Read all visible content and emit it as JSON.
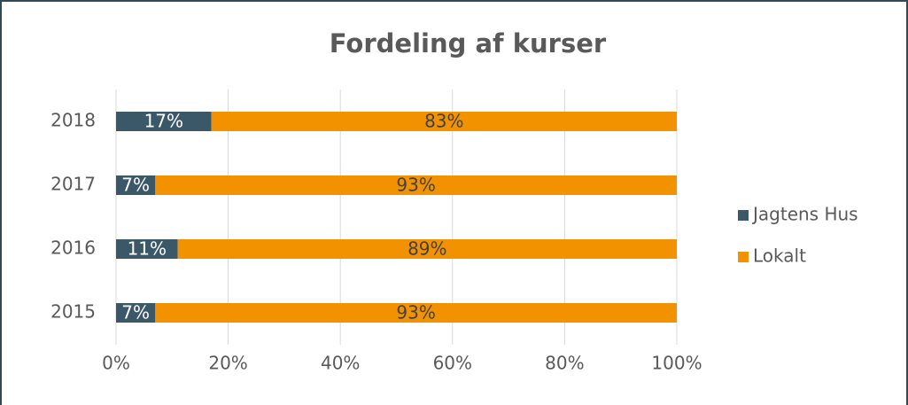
{
  "chart_data": {
    "type": "stacked-bar-horizontal",
    "title": "Fordeling af kurser",
    "categories": [
      "2018",
      "2017",
      "2016",
      "2015"
    ],
    "series": [
      {
        "name": "Jagtens Hus",
        "color": "#3b5868",
        "values": [
          17,
          7,
          11,
          7
        ],
        "value_labels": [
          "17%",
          "7%",
          "11%",
          "7%"
        ]
      },
      {
        "name": "Lokalt",
        "color": "#f39200",
        "values": [
          83,
          93,
          89,
          93
        ],
        "value_labels": [
          "83%",
          "93%",
          "89%",
          "93%"
        ]
      }
    ],
    "xlim": [
      0,
      100
    ],
    "xticks": [
      {
        "value": 0,
        "label": "0%"
      },
      {
        "value": 20,
        "label": "20%"
      },
      {
        "value": 40,
        "label": "40%"
      },
      {
        "value": 60,
        "label": "60%"
      },
      {
        "value": 80,
        "label": "80%"
      },
      {
        "value": 100,
        "label": "100%"
      }
    ],
    "grid": true,
    "legend": "right"
  }
}
